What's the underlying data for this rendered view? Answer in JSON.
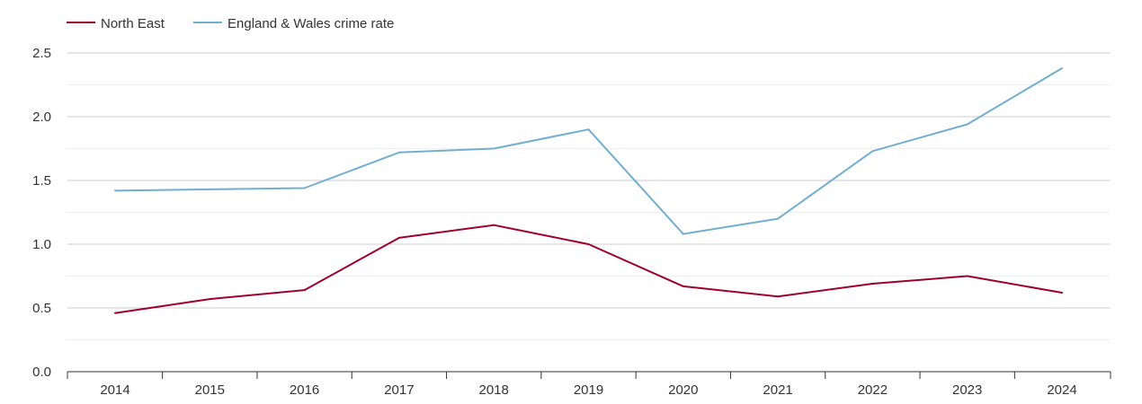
{
  "chart_data": {
    "type": "line",
    "title": "",
    "xlabel": "",
    "ylabel": "",
    "categories": [
      "2014",
      "2015",
      "2016",
      "2017",
      "2018",
      "2019",
      "2020",
      "2021",
      "2022",
      "2023",
      "2024"
    ],
    "ylim": [
      0,
      2.5
    ],
    "yticks": [
      "0.0",
      "0.5",
      "1.0",
      "1.5",
      "2.0",
      "2.5"
    ],
    "ytick_values": [
      0,
      0.5,
      1.0,
      1.5,
      2.0,
      2.5
    ],
    "minor_grid_values": [
      0.25,
      0.75,
      1.25,
      1.75,
      2.25
    ],
    "grid": true,
    "legend_position": "top-left",
    "series": [
      {
        "name": "North East",
        "color": "#a0002c",
        "values": [
          0.46,
          0.57,
          0.64,
          1.05,
          1.15,
          1.0,
          0.67,
          0.59,
          0.69,
          0.75,
          0.62
        ]
      },
      {
        "name": "England & Wales crime rate",
        "color": "#72aed0",
        "values": [
          1.42,
          1.43,
          1.44,
          1.72,
          1.75,
          1.9,
          1.08,
          1.2,
          1.73,
          1.94,
          2.38
        ]
      }
    ]
  }
}
